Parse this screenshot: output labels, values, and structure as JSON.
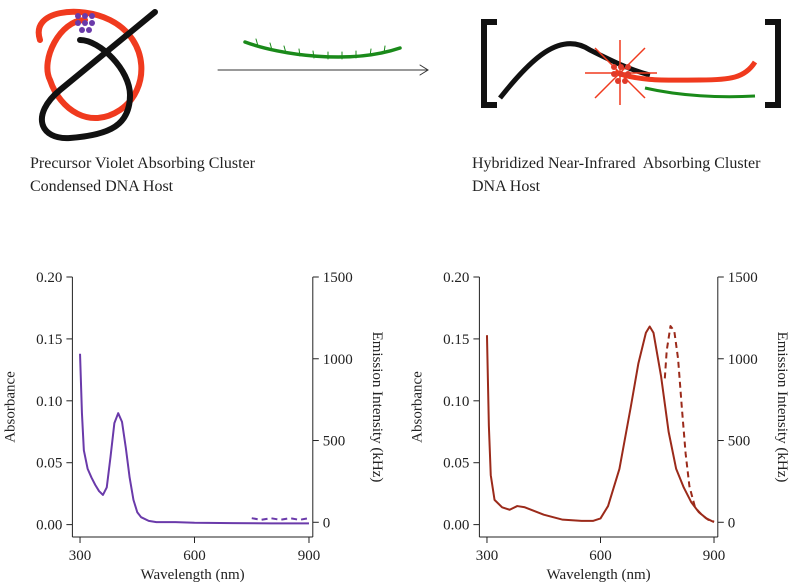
{
  "diagram": {
    "left_label": [
      "Precursor Violet Absorbing Cluster",
      "Condensed DNA Host"
    ],
    "right_label": [
      "Hybridized Near-Infrared  Absorbing Cluster",
      "DNA Host"
    ]
  },
  "chart_data": [
    {
      "type": "line",
      "xlabel": "Wavelength (nm)",
      "ylabel": "Absorbance",
      "y2label": "Emission Intensity (kHz)",
      "xlim": [
        280,
        910
      ],
      "xticks": [
        300,
        600,
        900
      ],
      "ylim": [
        -0.01,
        0.2
      ],
      "yticks": [
        {
          "value": 0,
          "label": "0.00"
        },
        {
          "value": 0.05,
          "label": "0.05"
        },
        {
          "value": 0.1,
          "label": "0.10"
        },
        {
          "value": 0.15,
          "label": "0.15"
        },
        {
          "value": 0.2,
          "label": "0.20"
        }
      ],
      "y2lim": [
        -90,
        1500
      ],
      "y2ticks": [
        0,
        500,
        1000,
        1500
      ],
      "series": [
        {
          "color": "#6a3aaa",
          "dashed": false,
          "x": [
            300,
            305,
            310,
            320,
            330,
            340,
            350,
            360,
            370,
            380,
            390,
            400,
            410,
            420,
            430,
            440,
            450,
            460,
            480,
            500,
            550,
            600,
            700,
            800,
            900
          ],
          "values": [
            0.138,
            0.09,
            0.06,
            0.045,
            0.038,
            0.032,
            0.027,
            0.024,
            0.03,
            0.055,
            0.082,
            0.09,
            0.083,
            0.062,
            0.038,
            0.02,
            0.01,
            0.006,
            0.003,
            0.002,
            0.002,
            0.0015,
            0.0012,
            0.001,
            0.001
          ]
        },
        {
          "color": "#6a3aaa",
          "dashed": true,
          "axis": "y2",
          "x": [
            750,
            775,
            800,
            825,
            850,
            875,
            900
          ],
          "values": [
            25,
            15,
            25,
            15,
            25,
            15,
            25
          ]
        }
      ]
    },
    {
      "type": "line",
      "xlabel": "Wavelength (nm)",
      "ylabel": "Absorbance",
      "y2label": "Emission Intensity (kHz)",
      "xlim": [
        280,
        910
      ],
      "xticks": [
        300,
        600,
        900
      ],
      "ylim": [
        -0.01,
        0.2
      ],
      "yticks": [
        {
          "value": 0,
          "label": "0.00"
        },
        {
          "value": 0.05,
          "label": "0.05"
        },
        {
          "value": 0.1,
          "label": "0.10"
        },
        {
          "value": 0.15,
          "label": "0.15"
        },
        {
          "value": 0.2,
          "label": "0.20"
        }
      ],
      "y2lim": [
        -90,
        1500
      ],
      "y2ticks": [
        0,
        500,
        1000,
        1500
      ],
      "series": [
        {
          "color": "#9b2a1a",
          "dashed": false,
          "x": [
            300,
            305,
            310,
            320,
            340,
            360,
            380,
            400,
            450,
            500,
            550,
            580,
            600,
            620,
            650,
            680,
            700,
            720,
            730,
            740,
            760,
            780,
            800,
            820,
            840,
            860,
            880,
            900
          ],
          "values": [
            0.153,
            0.08,
            0.04,
            0.02,
            0.014,
            0.012,
            0.015,
            0.014,
            0.008,
            0.004,
            0.003,
            0.003,
            0.005,
            0.015,
            0.045,
            0.095,
            0.13,
            0.155,
            0.16,
            0.155,
            0.12,
            0.075,
            0.045,
            0.03,
            0.018,
            0.01,
            0.005,
            0.002
          ]
        },
        {
          "color": "#9b2a1a",
          "dashed": true,
          "axis": "y2",
          "x": [
            770,
            775,
            785,
            795,
            805,
            815,
            825,
            835,
            850,
            870,
            885,
            900
          ],
          "values": [
            880,
            1050,
            1200,
            1170,
            1000,
            700,
            420,
            220,
            90,
            40,
            15,
            5
          ]
        }
      ]
    }
  ]
}
